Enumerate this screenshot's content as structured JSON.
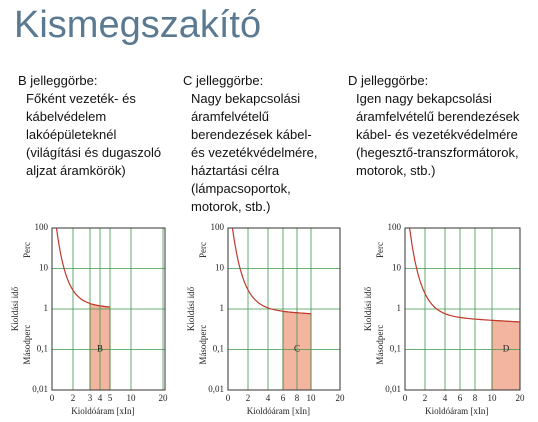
{
  "header": {
    "title": "Kismegszakító"
  },
  "columns": [
    {
      "heading": "B jelleggörbe:",
      "lines": [
        "Főként vezeték- és",
        "kábelvédelem",
        "lakóépületeknél",
        "(világítási és dugaszoló",
        "aljzat áramkörök)"
      ]
    },
    {
      "heading": "C jelleggörbe:",
      "lines": [
        "Nagy bekapcsolási",
        "áramfelvételű",
        "berendezések kábel-",
        "és vezetékvédelmére,",
        "háztartási célra",
        "(lámpacsoportok,",
        "motorok, stb.)"
      ]
    },
    {
      "heading": "D jelleggörbe:",
      "lines": [
        "Igen nagy bekapcsolási",
        "áramfelvételű berendezések",
        "kábel- és vezetékvédelmére",
        "(hegesztő-transzformátorok,",
        "motorok, stb.)"
      ]
    }
  ],
  "charts": [
    {
      "y_axis_title": "Kioldási idő",
      "y_upper_unit": "Perc",
      "y_lower_unit": "Másodperc",
      "y_ticks": [
        "100",
        "10",
        "1",
        "0,1",
        "0,01"
      ],
      "x_ticks": [
        "0",
        "2",
        "3",
        "4",
        "5",
        "10",
        "20"
      ],
      "x_axis_title": "Kioldóáram [xIn]",
      "region_label": "B"
    },
    {
      "y_axis_title": "Kioldási idő",
      "y_upper_unit": "Perc",
      "y_lower_unit": "Másodperc",
      "y_ticks": [
        "100",
        "10",
        "1",
        "0,1",
        "0,01"
      ],
      "x_ticks": [
        "0",
        "2",
        "4",
        "6",
        "8",
        "10",
        "20"
      ],
      "x_axis_title": "Kioldóáram [xIn]",
      "region_label": "C"
    },
    {
      "y_axis_title": "Kioldási idő",
      "y_upper_unit": "Perc",
      "y_lower_unit": "Másodperc",
      "y_ticks": [
        "100",
        "10",
        "1",
        "0,1",
        "0,01"
      ],
      "x_ticks": [
        "0",
        "2",
        "4",
        "6",
        "8",
        "10",
        "20"
      ],
      "x_axis_title": "Kioldóáram [xIn]",
      "region_label": "D"
    }
  ]
}
